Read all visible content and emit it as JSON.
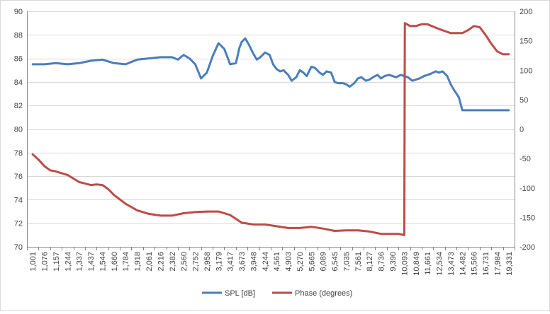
{
  "chart_data": {
    "type": "line",
    "title": "",
    "xlabel": "",
    "ylabel": "",
    "y2label": "",
    "grid": true,
    "legend_position": "bottom",
    "y_left": {
      "min": 70,
      "max": 90,
      "step": 2
    },
    "y_right": {
      "min": -200,
      "max": 200,
      "step": 50
    },
    "y_left_ticks": [
      "70",
      "72",
      "74",
      "76",
      "78",
      "80",
      "82",
      "84",
      "86",
      "88",
      "90"
    ],
    "y_right_ticks": [
      "-200",
      "-150",
      "-100",
      "-50",
      "0",
      "50",
      "100",
      "150",
      "200"
    ],
    "x_ticks": [
      "1,001",
      "1,076",
      "1,157",
      "1,244",
      "1,337",
      "1,437",
      "1,544",
      "1,660",
      "1,784",
      "1,918",
      "2,061",
      "2,216",
      "2,382",
      "2,560",
      "2,752",
      "2,958",
      "3,179",
      "3,417",
      "3,673",
      "3,948",
      "4,244",
      "4,561",
      "4,903",
      "5,270",
      "5,665",
      "6,089",
      "6,545",
      "7,035",
      "7,561",
      "8,127",
      "8,736",
      "9,390",
      "10,093",
      "10,849",
      "11,661",
      "12,534",
      "13,473",
      "14,482",
      "15,566",
      "16,731",
      "17,984",
      "19,331"
    ],
    "series": [
      {
        "name": "SPL [dB]",
        "axis": "left",
        "color": "#4a7ebb",
        "x": [
          0,
          1,
          2,
          3,
          4,
          5,
          6,
          7,
          8,
          9,
          10,
          11,
          12,
          12.5,
          13,
          13.5,
          14,
          14.5,
          15,
          15.5,
          16,
          16.5,
          17,
          17.5,
          17.8,
          18,
          18.3,
          18.6,
          19,
          19.3,
          19.6,
          20,
          20.4,
          20.7,
          21,
          21.3,
          21.6,
          22,
          22.3,
          22.7,
          23,
          23.3,
          23.6,
          24,
          24.3,
          24.7,
          25,
          25.3,
          25.7,
          26,
          26.3,
          26.7,
          27,
          27.3,
          27.7,
          28,
          28.3,
          28.7,
          29,
          29.3,
          29.7,
          30,
          30.3,
          30.7,
          31,
          31.3,
          31.7,
          32,
          32.3,
          32.7,
          33,
          33.3,
          33.7,
          34,
          34.3,
          34.7,
          35,
          35.3,
          35.7,
          36,
          36.3,
          36.7,
          37,
          37.3,
          37.7,
          38,
          38.3,
          38.7,
          39,
          39.3,
          39.7,
          40,
          40.3,
          40.5,
          40.7,
          41
        ],
        "values": [
          85.5,
          85.5,
          85.6,
          85.5,
          85.6,
          85.8,
          85.9,
          85.6,
          85.5,
          85.9,
          86.0,
          86.1,
          86.1,
          85.9,
          86.3,
          86.0,
          85.5,
          84.3,
          84.8,
          86.2,
          87.3,
          86.8,
          85.5,
          85.6,
          86.9,
          87.4,
          87.7,
          87.2,
          86.4,
          85.9,
          86.1,
          86.5,
          86.3,
          85.5,
          85.1,
          84.9,
          85.0,
          84.6,
          84.1,
          84.4,
          85.0,
          84.8,
          84.5,
          85.3,
          85.2,
          84.8,
          84.6,
          84.9,
          84.8,
          84.0,
          83.9,
          83.9,
          83.8,
          83.6,
          83.9,
          84.3,
          84.4,
          84.1,
          84.2,
          84.4,
          84.6,
          84.3,
          84.5,
          84.6,
          84.5,
          84.4,
          84.6,
          84.5,
          84.4,
          84.1,
          84.2,
          84.3,
          84.5,
          84.6,
          84.7,
          84.9,
          84.8,
          84.9,
          84.5,
          83.8,
          83.3,
          82.7,
          81.6,
          81.6,
          81.6,
          81.6,
          81.6,
          81.6,
          81.6,
          81.6,
          81.6,
          81.6,
          81.6,
          81.6,
          81.6,
          81.6
        ]
      },
      {
        "name": "Phase (degrees)",
        "axis": "right",
        "color": "#be4b48",
        "x": [
          0,
          0.5,
          1,
          1.5,
          2,
          3,
          4,
          5,
          5.5,
          6,
          6.5,
          7,
          8,
          9,
          10,
          11,
          12,
          13,
          14,
          15,
          16,
          17,
          18,
          19,
          20,
          21,
          22,
          23,
          24,
          25,
          26,
          27,
          28,
          29,
          30,
          31,
          31.5,
          32,
          32.05,
          32.5,
          33,
          33.5,
          34,
          35,
          36,
          37,
          37.5,
          38,
          38.5,
          39,
          39.5,
          40,
          40.5,
          41
        ],
        "values": [
          -43,
          -52,
          -63,
          -70,
          -72,
          -78,
          -90,
          -95,
          -94,
          -95,
          -102,
          -112,
          -127,
          -138,
          -144,
          -147,
          -147,
          -143,
          -141,
          -140,
          -140,
          -146,
          -159,
          -162,
          -162,
          -165,
          -168,
          -168,
          -166,
          -169,
          -173,
          -172,
          -172,
          -174,
          -178,
          -178,
          -178,
          -180,
          180,
          175,
          175,
          178,
          178,
          170,
          163,
          163,
          168,
          175,
          173,
          160,
          145,
          132,
          127,
          127
        ]
      }
    ]
  }
}
